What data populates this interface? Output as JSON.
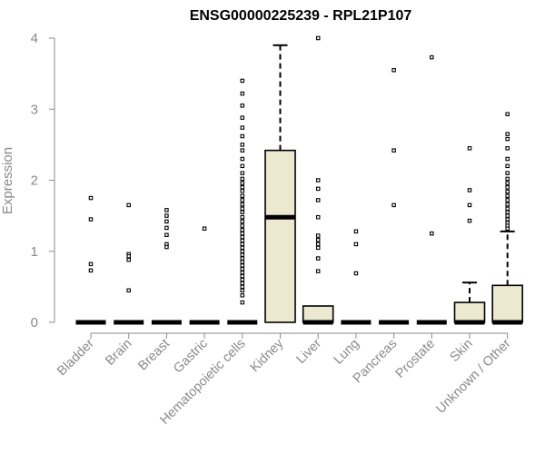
{
  "chart_data": {
    "type": "boxplot",
    "title": "ENSG00000225239 - RPL21P107",
    "ylabel": "Expression",
    "xlabel": "",
    "ylim": [
      0,
      4
    ],
    "yticks": [
      "0",
      "1",
      "2",
      "3",
      "4"
    ],
    "box_fill": "#ede8d0",
    "categories": [
      {
        "label": "Bladder",
        "q1": 0,
        "median": 0,
        "q3": 0,
        "whisker_low": 0,
        "whisker_high": 0,
        "outliers": [
          1.75,
          1.45,
          0.82,
          0.73
        ]
      },
      {
        "label": "Brain",
        "q1": 0,
        "median": 0,
        "q3": 0,
        "whisker_low": 0,
        "whisker_high": 0,
        "outliers": [
          1.65,
          0.96,
          0.93,
          0.88,
          0.45
        ]
      },
      {
        "label": "Breast",
        "q1": 0,
        "median": 0,
        "q3": 0,
        "whisker_low": 0,
        "whisker_high": 0,
        "outliers": [
          1.58,
          1.5,
          1.42,
          1.33,
          1.23,
          1.1,
          1.06
        ]
      },
      {
        "label": "Gastric",
        "q1": 0,
        "median": 0,
        "q3": 0,
        "whisker_low": 0,
        "whisker_high": 0,
        "outliers": [
          1.32
        ]
      },
      {
        "label": "Hematopoietic cells",
        "q1": 0,
        "median": 0,
        "q3": 0,
        "whisker_low": 0,
        "whisker_high": 0,
        "outliers": [
          3.4,
          3.22,
          3.05,
          2.88,
          2.74,
          2.62,
          2.5,
          2.42,
          2.3,
          2.2,
          2.1,
          2.02,
          1.96,
          1.9,
          1.85,
          1.78,
          1.72,
          1.66,
          1.6,
          1.55,
          1.48,
          1.42,
          1.36,
          1.3,
          1.25,
          1.2,
          1.15,
          1.1,
          1.05,
          1.0,
          0.95,
          0.9,
          0.85,
          0.8,
          0.75,
          0.7,
          0.65,
          0.6,
          0.55,
          0.5,
          0.45,
          0.38,
          0.28
        ]
      },
      {
        "label": "Kidney",
        "q1": 0,
        "median": 1.48,
        "q3": 2.42,
        "whisker_low": 0,
        "whisker_high": 3.9,
        "outliers": []
      },
      {
        "label": "Liver",
        "q1": 0,
        "median": 0,
        "q3": 0.23,
        "whisker_low": 0,
        "whisker_high": 0.23,
        "outliers": [
          4.0,
          2.0,
          1.88,
          1.72,
          1.48,
          1.22,
          1.16,
          1.1,
          1.05,
          0.9,
          0.72
        ]
      },
      {
        "label": "Lung",
        "q1": 0,
        "median": 0,
        "q3": 0,
        "whisker_low": 0,
        "whisker_high": 0,
        "outliers": [
          1.28,
          1.1,
          0.69
        ]
      },
      {
        "label": "Pancreas",
        "q1": 0,
        "median": 0,
        "q3": 0,
        "whisker_low": 0,
        "whisker_high": 0,
        "outliers": [
          3.55,
          2.42,
          1.65
        ]
      },
      {
        "label": "Prostate",
        "q1": 0,
        "median": 0,
        "q3": 0,
        "whisker_low": 0,
        "whisker_high": 0,
        "outliers": [
          3.73,
          1.25
        ]
      },
      {
        "label": "Skin",
        "q1": 0,
        "median": 0,
        "q3": 0.28,
        "whisker_low": 0,
        "whisker_high": 0.56,
        "outliers": [
          2.45,
          1.86,
          1.65,
          1.43
        ]
      },
      {
        "label": "Unknown / Other",
        "q1": 0,
        "median": 0,
        "q3": 0.52,
        "whisker_low": 0,
        "whisker_high": 1.28,
        "outliers": [
          2.93,
          2.65,
          2.58,
          2.45,
          2.3,
          2.2,
          2.1,
          2.02,
          1.96,
          1.9,
          1.84,
          1.78,
          1.72,
          1.66,
          1.6,
          1.55,
          1.5,
          1.45,
          1.4,
          1.36,
          1.32
        ]
      }
    ]
  }
}
